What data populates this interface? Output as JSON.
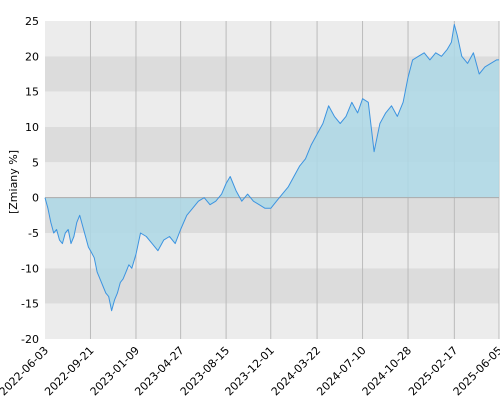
{
  "chart_data": {
    "type": "area",
    "title": "",
    "xlabel": "",
    "ylabel": "[Zmiany %]",
    "ylim": [
      -20,
      25
    ],
    "y_ticks": [
      25,
      20,
      15,
      10,
      5,
      0,
      -5,
      -10,
      -15,
      -20
    ],
    "y_tick_labels": [
      "25",
      "20",
      "15",
      "10",
      "5",
      "0",
      "-5",
      "-10",
      "-15",
      "-20"
    ],
    "x_range": [
      "2022-06-03",
      "2025-06-05"
    ],
    "x_ticks": [
      "2022-06-03",
      "2022-09-21",
      "2023-01-09",
      "2023-04-27",
      "2023-08-15",
      "2023-12-01",
      "2024-03-22",
      "2024-07-10",
      "2024-10-28",
      "2025-02-17",
      "2025-06-05"
    ],
    "grid": true,
    "colors": {
      "line": "#3d94e0",
      "fill": "#add8e6",
      "band_dark": "#dcdcdc",
      "band_light": "#ececec",
      "gridline": "#bbbbbb",
      "zero_line": "#aaaaaa"
    },
    "series": [
      {
        "x": [
          "2022-06-03",
          "2022-06-10",
          "2022-06-17",
          "2022-06-24",
          "2022-07-01",
          "2022-07-08",
          "2022-07-15",
          "2022-07-22",
          "2022-07-29",
          "2022-08-05",
          "2022-08-12",
          "2022-08-19",
          "2022-08-26",
          "2022-09-02",
          "2022-09-09",
          "2022-09-16",
          "2022-09-21",
          "2022-09-30",
          "2022-10-07",
          "2022-10-14",
          "2022-10-21",
          "2022-10-28",
          "2022-11-04",
          "2022-11-11",
          "2022-11-18",
          "2022-11-25",
          "2022-12-02",
          "2022-12-09",
          "2022-12-16",
          "2022-12-23",
          "2022-12-30",
          "2023-01-09",
          "2023-01-20",
          "2023-02-03",
          "2023-02-17",
          "2023-03-03",
          "2023-03-17",
          "2023-03-31",
          "2023-04-14",
          "2023-04-27",
          "2023-05-12",
          "2023-05-26",
          "2023-06-09",
          "2023-06-23",
          "2023-07-07",
          "2023-07-21",
          "2023-08-04",
          "2023-08-15",
          "2023-08-25",
          "2023-09-08",
          "2023-09-22",
          "2023-10-06",
          "2023-10-20",
          "2023-11-03",
          "2023-11-17",
          "2023-12-01",
          "2023-12-15",
          "2023-12-29",
          "2024-01-12",
          "2024-01-26",
          "2024-02-09",
          "2024-02-23",
          "2024-03-08",
          "2024-03-22",
          "2024-04-05",
          "2024-04-19",
          "2024-05-03",
          "2024-05-17",
          "2024-05-31",
          "2024-06-14",
          "2024-06-28",
          "2024-07-10",
          "2024-07-24",
          "2024-08-07",
          "2024-08-21",
          "2024-09-04",
          "2024-09-18",
          "2024-10-02",
          "2024-10-16",
          "2024-10-28",
          "2024-11-08",
          "2024-11-22",
          "2024-12-06",
          "2024-12-20",
          "2025-01-03",
          "2025-01-17",
          "2025-01-31",
          "2025-02-10",
          "2025-02-17",
          "2025-02-24",
          "2025-03-07",
          "2025-03-21",
          "2025-04-04",
          "2025-04-18",
          "2025-05-02",
          "2025-05-16",
          "2025-05-30",
          "2025-06-05"
        ],
        "y": [
          0.0,
          -1.5,
          -3.5,
          -5.0,
          -4.5,
          -6.0,
          -6.5,
          -5.0,
          -4.5,
          -6.5,
          -5.5,
          -3.5,
          -2.5,
          -4.0,
          -5.5,
          -7.0,
          -7.5,
          -8.5,
          -10.5,
          -11.5,
          -12.5,
          -13.5,
          -14.0,
          -16.0,
          -14.5,
          -13.5,
          -12.0,
          -11.5,
          -10.5,
          -9.5,
          -10.0,
          -8.0,
          -5.0,
          -5.5,
          -6.5,
          -7.5,
          -6.0,
          -5.5,
          -6.5,
          -4.5,
          -2.5,
          -1.5,
          -0.5,
          0.0,
          -1.0,
          -0.5,
          0.5,
          2.0,
          3.0,
          1.0,
          -0.5,
          0.5,
          -0.5,
          -1.0,
          -1.5,
          -1.5,
          -0.5,
          0.5,
          1.5,
          3.0,
          4.5,
          5.5,
          7.5,
          9.0,
          10.5,
          13.0,
          11.5,
          10.5,
          11.5,
          13.5,
          12.0,
          14.0,
          13.5,
          6.5,
          10.5,
          12.0,
          13.0,
          11.5,
          13.5,
          17.0,
          19.5,
          20.0,
          20.5,
          19.5,
          20.5,
          20.0,
          21.0,
          22.0,
          24.5,
          23.0,
          20.0,
          19.0,
          20.5,
          17.5,
          18.5,
          19.0,
          19.5,
          19.5
        ]
      }
    ]
  }
}
